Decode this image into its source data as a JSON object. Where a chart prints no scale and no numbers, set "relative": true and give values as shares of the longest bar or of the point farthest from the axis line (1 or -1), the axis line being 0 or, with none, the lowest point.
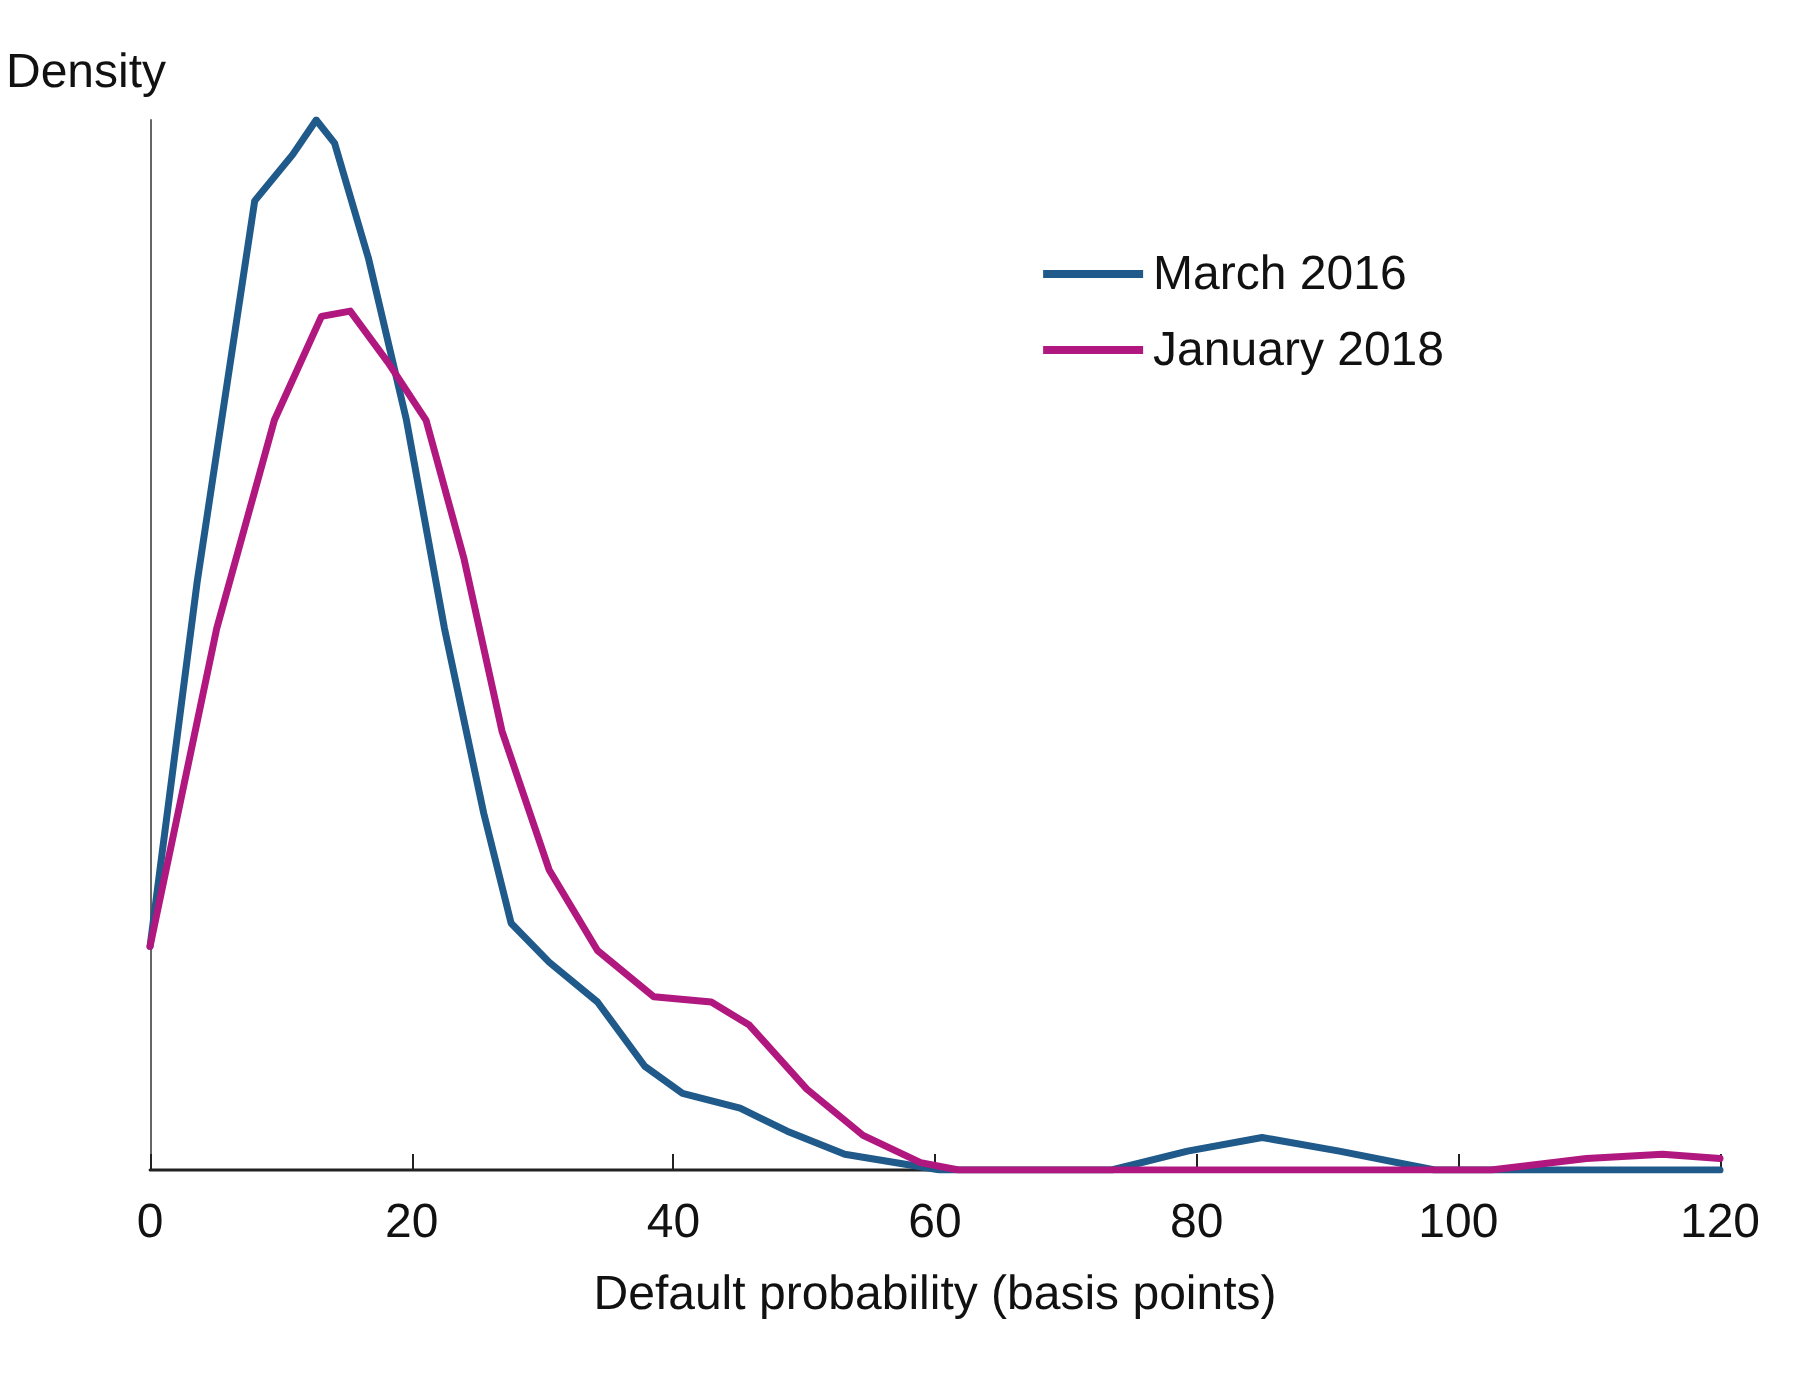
{
  "chart_data": {
    "type": "line",
    "xlabel": "Default probability (basis points)",
    "ylabel": "Density",
    "relative": true,
    "xlim": [
      0,
      120
    ],
    "xticks": [
      0,
      20,
      40,
      60,
      80,
      100,
      120
    ],
    "grid": false,
    "legend": "top right",
    "marker": "none",
    "line_style": "solid",
    "series": [
      {
        "name": "March 2016",
        "color": "#1f5a8a",
        "x": [
          0,
          3.6,
          8,
          10.9,
          12.7,
          14.1,
          16.7,
          19.6,
          22.5,
          25.5,
          27.6,
          30.5,
          34.2,
          37.8,
          40.7,
          45.1,
          48.7,
          53.1,
          60.4,
          73.5,
          79.3,
          85,
          90.9,
          98.2,
          120
        ],
        "values": [
          0.213,
          0.56,
          0.923,
          0.967,
          1,
          0.978,
          0.868,
          0.714,
          0.516,
          0.34,
          0.235,
          0.198,
          0.16,
          0.099,
          0.073,
          0.059,
          0.037,
          0.015,
          0,
          0,
          0.018,
          0.031,
          0.018,
          0,
          0
        ]
      },
      {
        "name": "January 2018",
        "color": "#b0187f",
        "x": [
          0,
          5.1,
          9.5,
          13.1,
          15.3,
          18.2,
          21.1,
          24,
          26.9,
          30.5,
          34.2,
          38.5,
          42.9,
          45.8,
          50.2,
          54.5,
          58.9,
          61.8,
          102.5,
          109.8,
          115.6,
          120
        ],
        "values": [
          0.213,
          0.516,
          0.714,
          0.813,
          0.818,
          0.769,
          0.714,
          0.582,
          0.418,
          0.286,
          0.209,
          0.165,
          0.16,
          0.138,
          0.077,
          0.033,
          0.007,
          0,
          0,
          0.011,
          0.015,
          0.011
        ]
      }
    ]
  }
}
